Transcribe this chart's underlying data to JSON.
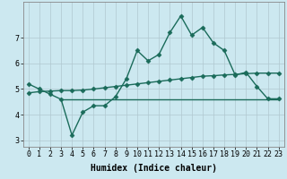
{
  "xlabel": "Humidex (Indice chaleur)",
  "background_color": "#cce8f0",
  "grid_color": "#b0c8d0",
  "line_color": "#1a6b5a",
  "x": [
    0,
    1,
    2,
    3,
    4,
    5,
    6,
    7,
    8,
    9,
    10,
    11,
    12,
    13,
    14,
    15,
    16,
    17,
    18,
    19,
    20,
    21,
    22,
    23
  ],
  "y_curve": [
    5.2,
    5.0,
    4.8,
    4.6,
    3.2,
    4.1,
    4.35,
    4.35,
    4.7,
    5.4,
    6.5,
    6.1,
    6.35,
    7.2,
    7.85,
    7.1,
    7.4,
    6.8,
    6.5,
    5.55,
    5.65,
    5.1,
    4.62,
    4.62
  ],
  "y_trend": [
    4.85,
    4.9,
    4.92,
    4.94,
    4.94,
    4.96,
    5.0,
    5.05,
    5.1,
    5.15,
    5.2,
    5.25,
    5.3,
    5.35,
    5.4,
    5.45,
    5.5,
    5.52,
    5.55,
    5.57,
    5.6,
    5.62,
    5.62,
    5.62
  ],
  "y_flat_start": 4.6,
  "y_flat_end": 4.6,
  "x_flat_start": 3,
  "x_flat_end": 23,
  "ylim": [
    2.75,
    8.4
  ],
  "yticks": [
    3,
    4,
    5,
    6,
    7
  ],
  "xticks": [
    0,
    1,
    2,
    3,
    4,
    5,
    6,
    7,
    8,
    9,
    10,
    11,
    12,
    13,
    14,
    15,
    16,
    17,
    18,
    19,
    20,
    21,
    22,
    23
  ],
  "markersize": 2.5,
  "linewidth": 1.0,
  "xlabel_fontsize": 7,
  "tick_fontsize": 6
}
